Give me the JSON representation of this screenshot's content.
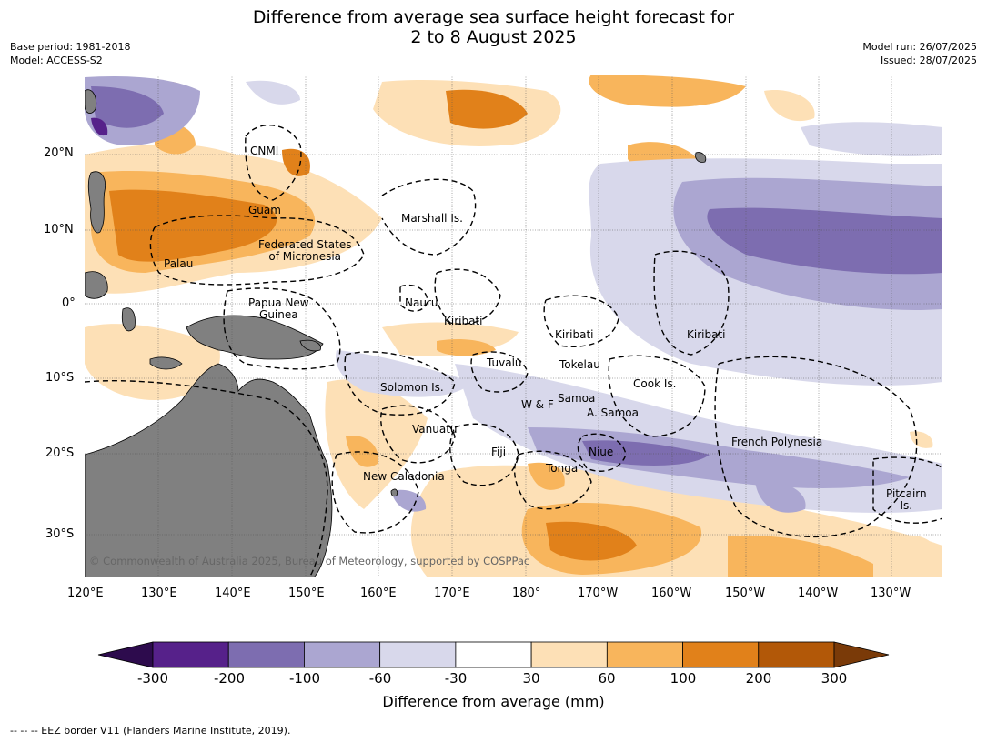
{
  "title": {
    "line1": "Difference from average sea surface height forecast for",
    "line2": "2 to 8 August 2025"
  },
  "meta": {
    "base_period": "Base period: 1981-2018",
    "model": "Model: ACCESS-S2",
    "model_run": "Model run: 26/07/2025",
    "issued": "Issued: 28/07/2025"
  },
  "axes": {
    "lon_ticks": [
      "120°E",
      "130°E",
      "140°E",
      "150°E",
      "160°E",
      "170°E",
      "180°",
      "170°W",
      "160°W",
      "150°W",
      "140°W",
      "130°W"
    ],
    "lat_ticks": [
      "20°N",
      "10°N",
      "0°",
      "10°S",
      "20°S",
      "30°S"
    ]
  },
  "labels": {
    "cnmi": "CNMI",
    "guam": "Guam",
    "marshall": "Marshall Is.",
    "fsm": "Federated States\nof Micronesia",
    "palau": "Palau",
    "png": "Papua New\nGuinea",
    "nauru": "Nauru",
    "kiribati_w": "Kiribati",
    "kiribati_c": "Kiribati",
    "kiribati_e": "Kiribati",
    "tuvalu": "Tuvalu",
    "tokelau": "Tokelau",
    "cook": "Cook Is.",
    "solomon": "Solomon Is.",
    "samoa": "Samoa",
    "wf": "W & F",
    "asamoa": "A. Samoa",
    "vanuatu": "Vanuatu",
    "fiji": "Fiji",
    "niue": "Niue",
    "tonga": "Tonga",
    "french_polynesia": "French Polynesia",
    "new_caledonia": "New Caledonia",
    "pitcairn": "Pitcairn\nIs."
  },
  "copyright": "© Commonwealth of Australia 2025, Bureau of Meteorology, supported by COSPPac",
  "colorbar": {
    "label": "Difference from average (mm)",
    "ticks": [
      "-300",
      "-200",
      "-100",
      "-60",
      "-30",
      "30",
      "60",
      "100",
      "200",
      "300"
    ],
    "colors": [
      "#2d0b4d",
      "#56218a",
      "#7d6db0",
      "#aba6d1",
      "#d8d8eb",
      "#ffffff",
      "#fde0b6",
      "#f8b55c",
      "#e1811a",
      "#b25808",
      "#7a3a08"
    ]
  },
  "colors": {
    "land": "#808080",
    "ocean": "#ffffff"
  },
  "footnote": "--  --  -- EEZ border V11 (Flanders Marine Institute, 2019)."
}
